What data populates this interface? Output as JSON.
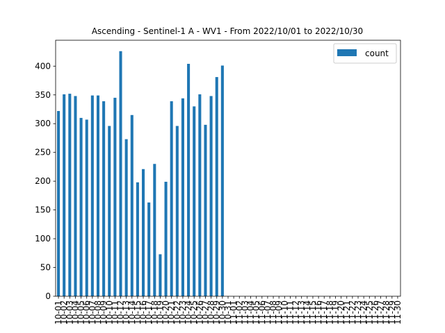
{
  "chart_data": {
    "type": "bar",
    "title": "Ascending - Sentinel-1 A - WV1 - From 2022/10/01 to 2022/10/30",
    "xlabel": "",
    "ylabel": "",
    "ylim": [
      0,
      445
    ],
    "yticks": [
      0,
      50,
      100,
      150,
      200,
      250,
      300,
      350,
      400
    ],
    "grid": false,
    "legend_position": "top-right",
    "bar_color": "#1f77b4",
    "categories": [
      "10-01",
      "10-02",
      "10-03",
      "10-04",
      "10-05",
      "10-06",
      "10-07",
      "10-08",
      "10-09",
      "10-10",
      "10-11",
      "10-12",
      "10-13",
      "10-14",
      "10-15",
      "10-16",
      "10-17",
      "10-18",
      "10-19",
      "10-20",
      "10-21",
      "10-22",
      "10-23",
      "10-24",
      "10-25",
      "10-26",
      "10-27",
      "10-28",
      "10-29",
      "10-30",
      "10-31",
      "11-01",
      "11-02",
      "11-03",
      "11-04",
      "11-05",
      "11-06",
      "11-07",
      "11-08",
      "11-09",
      "11-10",
      "11-11",
      "11-12",
      "11-13",
      "11-14",
      "11-15",
      "11-16",
      "11-17",
      "11-18",
      "11-19",
      "11-20",
      "11-21",
      "11-22",
      "11-23",
      "11-24",
      "11-25",
      "11-26",
      "11-27",
      "11-28",
      "11-29",
      "11-30"
    ],
    "series": [
      {
        "name": "count",
        "values": [
          322,
          351,
          352,
          348,
          310,
          307,
          349,
          349,
          339,
          296,
          345,
          426,
          273,
          315,
          198,
          221,
          163,
          230,
          73,
          199,
          339,
          296,
          344,
          404,
          330,
          351,
          298,
          348,
          381,
          401,
          0,
          0,
          0,
          0,
          0,
          0,
          0,
          0,
          0,
          0,
          0,
          0,
          0,
          0,
          0,
          0,
          0,
          0,
          0,
          0,
          0,
          0,
          0,
          0,
          0,
          0,
          0,
          0,
          0,
          0,
          0
        ]
      }
    ]
  }
}
